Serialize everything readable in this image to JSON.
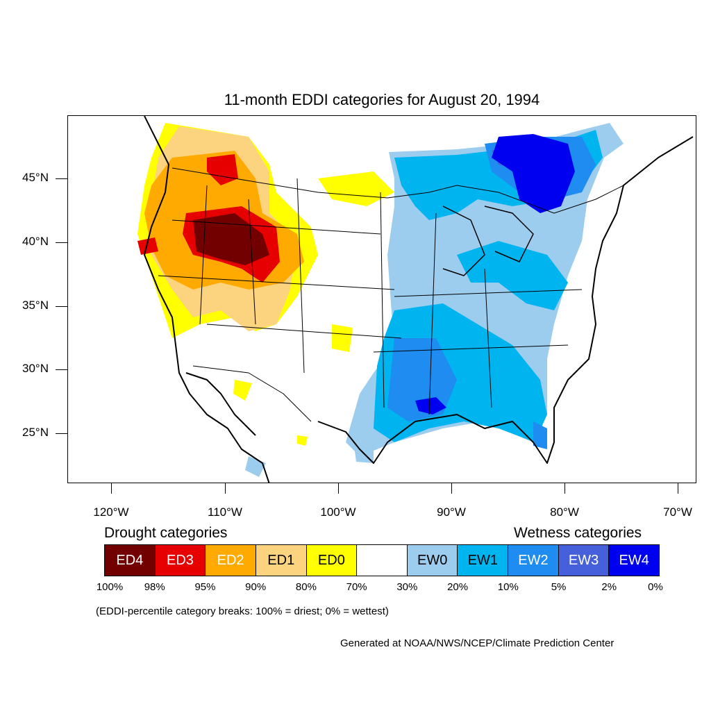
{
  "title": "11-month EDDI categories for August 20, 1994",
  "lat_labels": [
    "45°N",
    "40°N",
    "35°N",
    "30°N",
    "25°N"
  ],
  "lon_labels": [
    "120°W",
    "110°W",
    "100°W",
    "90°W",
    "80°W",
    "70°W"
  ],
  "legend": {
    "drought_heading": "Drought categories",
    "wetness_heading": "Wetness categories",
    "categories": [
      {
        "label": "ED4",
        "color": "#730000",
        "text_color": "#ffffff"
      },
      {
        "label": "ED3",
        "color": "#e60000",
        "text_color": "#ffffff"
      },
      {
        "label": "ED2",
        "color": "#ffaa00",
        "text_color": "#ffffff"
      },
      {
        "label": "ED1",
        "color": "#fcd37f",
        "text_color": "#000000"
      },
      {
        "label": "ED0",
        "color": "#ffff00",
        "text_color": "#000000"
      },
      {
        "label": "",
        "color": "#ffffff",
        "text_color": "#000000"
      },
      {
        "label": "EW0",
        "color": "#9dcdee",
        "text_color": "#000000"
      },
      {
        "label": "EW1",
        "color": "#00b4f0",
        "text_color": "#000000"
      },
      {
        "label": "EW2",
        "color": "#1e8cf0",
        "text_color": "#ffffff"
      },
      {
        "label": "EW3",
        "color": "#4660dc",
        "text_color": "#ffffff"
      },
      {
        "label": "EW4",
        "color": "#0000f0",
        "text_color": "#ffffff"
      }
    ],
    "percent_breaks": [
      "100%",
      "98%",
      "95%",
      "90%",
      "80%",
      "70%",
      "30%",
      "20%",
      "10%",
      "5%",
      "2%",
      "0%"
    ]
  },
  "note": "(EDDI-percentile category breaks: 100% = driest; 0% = wettest)",
  "credit": "Generated at NOAA/NWS/NCEP/Climate Prediction Center",
  "colors": {
    "ED4": "#730000",
    "ED3": "#e60000",
    "ED2": "#ffaa00",
    "ED1": "#fcd37f",
    "ED0": "#ffff00",
    "EW0": "#9dcdee",
    "EW1": "#00b4f0",
    "EW2": "#1e8cf0",
    "EW3": "#4660dc",
    "EW4": "#0000f0"
  }
}
